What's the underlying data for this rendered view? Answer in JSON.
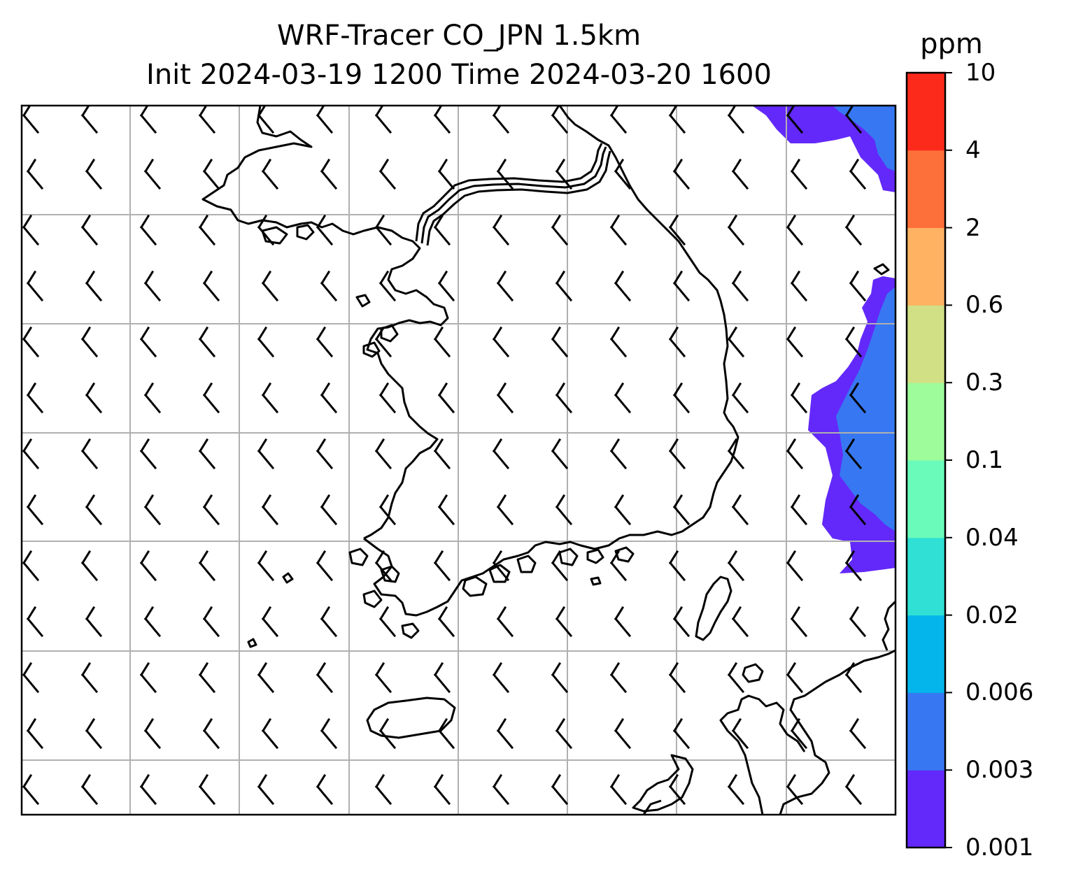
{
  "title": {
    "line1": "WRF-Tracer CO_JPN 1.5km",
    "line2": "Init 2024-03-19 1200 Time 2024-03-20 1600"
  },
  "colorbar": {
    "label": "ppm",
    "levels": [
      "0.001",
      "0.003",
      "0.006",
      "0.02",
      "0.04",
      "0.1",
      "0.3",
      "0.6",
      "2",
      "4",
      "10"
    ],
    "colors": [
      "#6329fa",
      "#3778f2",
      "#03b5eb",
      "#30e0d4",
      "#6afbba",
      "#9efc9a",
      "#d2e085",
      "#feb262",
      "#fe7039",
      "#fc2a1b"
    ]
  },
  "map": {
    "gridlines": true,
    "tracer_shading_colors": [
      "#6329fa",
      "#3778f2"
    ],
    "coastline_color": "#000000",
    "gridline_color": "#b0b0b0",
    "wind_barbs": "northwesterly flow"
  }
}
